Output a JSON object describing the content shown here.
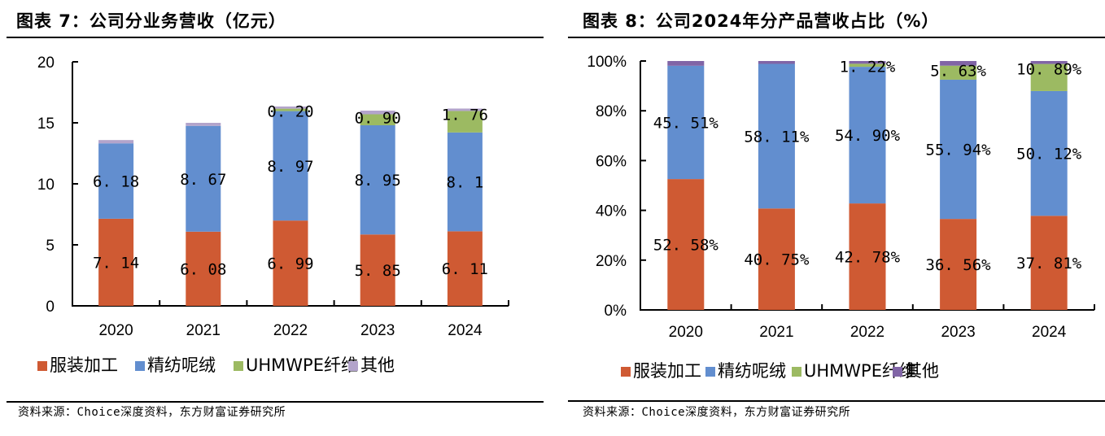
{
  "figures": [
    {
      "title": "图表 7：公司分业务营收（亿元）",
      "source": "资料来源：Choice深度资料，东方财富证券研究所"
    },
    {
      "title": "图表 8：公司2024年分产品营收占比（%）",
      "source": "资料来源：Choice深度资料，东方财富证券研究所"
    }
  ],
  "colors": {
    "服装加工": "#CF5A33",
    "精纺呢绒": "#628ECF",
    "UHMWPE纤维": "#9CBA62",
    "其他_left": "#B3A4CB",
    "其他_right": "#8165A6"
  },
  "chart_data": [
    {
      "type": "bar",
      "stacked": true,
      "title": "图表 7：公司分业务营收（亿元）",
      "xlabel": "",
      "ylabel": "",
      "categories": [
        "2020",
        "2021",
        "2022",
        "2023",
        "2024"
      ],
      "ylim": [
        0,
        20
      ],
      "yticks": [
        0,
        5,
        10,
        15,
        20
      ],
      "ytick_labels": [
        "0",
        "5",
        "10",
        "15",
        "20"
      ],
      "grid": false,
      "legend_position": "bottom",
      "series": [
        {
          "name": "服装加工",
          "values": [
            7.14,
            6.08,
            6.99,
            5.85,
            6.11
          ],
          "labels": [
            "7.14",
            "6.08",
            "6.99",
            "5.85",
            "6.11"
          ]
        },
        {
          "name": "精纺呢绒",
          "values": [
            6.18,
            8.67,
            8.97,
            8.95,
            8.1
          ],
          "labels": [
            "6.18",
            "8.67",
            "8.97",
            "8.95",
            "8.1"
          ]
        },
        {
          "name": "UHMWPE纤维",
          "values": [
            0,
            0,
            0.2,
            0.9,
            1.76
          ],
          "labels": [
            "",
            "",
            "0.20",
            "0.90",
            "1.76"
          ]
        },
        {
          "name": "其他",
          "values": [
            0.27,
            0.25,
            0.18,
            0.3,
            0.2
          ],
          "labels": [
            "",
            "",
            "",
            "",
            ""
          ]
        }
      ],
      "legend": [
        "服装加工",
        "精纺呢绒",
        "UHMWPE纤维",
        "其他"
      ]
    },
    {
      "type": "bar",
      "stacked": true,
      "percent": true,
      "title": "图表 8：公司2024年分产品营收占比（%）",
      "xlabel": "",
      "ylabel": "",
      "categories": [
        "2020",
        "2021",
        "2022",
        "2023",
        "2024"
      ],
      "ylim": [
        0,
        100
      ],
      "yticks": [
        0,
        20,
        40,
        60,
        80,
        100
      ],
      "ytick_labels": [
        "0%",
        "20%",
        "40%",
        "60%",
        "80%",
        "100%"
      ],
      "grid": false,
      "legend_position": "bottom",
      "series": [
        {
          "name": "服装加工",
          "values": [
            52.58,
            40.75,
            42.78,
            36.56,
            37.81
          ],
          "labels": [
            "52.58%",
            "40.75%",
            "42.78%",
            "36.56%",
            "37.81%"
          ]
        },
        {
          "name": "精纺呢绒",
          "values": [
            45.51,
            58.11,
            54.9,
            55.94,
            50.12
          ],
          "labels": [
            "45.51%",
            "58.11%",
            "54.90%",
            "55.94%",
            "50.12%"
          ]
        },
        {
          "name": "UHMWPE纤维",
          "values": [
            0,
            0,
            1.22,
            5.63,
            10.89
          ],
          "labels": [
            "",
            "",
            "1.22%",
            "5.63%",
            "10.89%"
          ]
        },
        {
          "name": "其他",
          "values": [
            1.91,
            1.14,
            1.1,
            1.87,
            1.18
          ],
          "labels": [
            "",
            "",
            "",
            "",
            ""
          ]
        }
      ],
      "legend": [
        "服装加工",
        "精纺呢绒",
        "UHMWPE纤维",
        "其他"
      ]
    }
  ]
}
